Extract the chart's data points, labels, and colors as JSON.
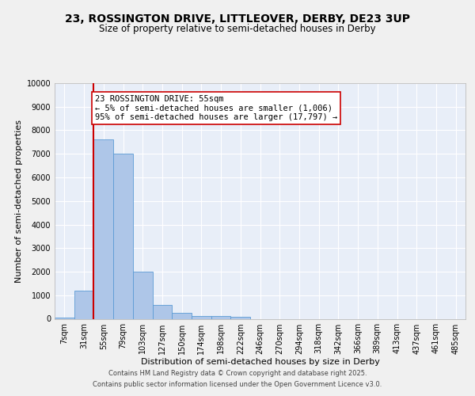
{
  "title_line1": "23, ROSSINGTON DRIVE, LITTLEOVER, DERBY, DE23 3UP",
  "title_line2": "Size of property relative to semi-detached houses in Derby",
  "xlabel": "Distribution of semi-detached houses by size in Derby",
  "ylabel": "Number of semi-detached properties",
  "categories": [
    "7sqm",
    "31sqm",
    "55sqm",
    "79sqm",
    "103sqm",
    "127sqm",
    "150sqm",
    "174sqm",
    "198sqm",
    "222sqm",
    "246sqm",
    "270sqm",
    "294sqm",
    "318sqm",
    "342sqm",
    "366sqm",
    "389sqm",
    "413sqm",
    "437sqm",
    "461sqm",
    "485sqm"
  ],
  "values": [
    50,
    1200,
    7600,
    7000,
    2000,
    600,
    250,
    130,
    120,
    100,
    0,
    0,
    0,
    0,
    0,
    0,
    0,
    0,
    0,
    0,
    0
  ],
  "bar_color": "#aec6e8",
  "bar_edge_color": "#5b9bd5",
  "red_line_index": 2,
  "annotation_text": "23 ROSSINGTON DRIVE: 55sqm\n← 5% of semi-detached houses are smaller (1,006)\n95% of semi-detached houses are larger (17,797) →",
  "annotation_box_color": "#ffffff",
  "annotation_box_edge_color": "#cc0000",
  "ylim": [
    0,
    10000
  ],
  "yticks": [
    0,
    1000,
    2000,
    3000,
    4000,
    5000,
    6000,
    7000,
    8000,
    9000,
    10000
  ],
  "background_color": "#e8eef8",
  "grid_color": "#ffffff",
  "fig_background_color": "#f0f0f0",
  "footer_line1": "Contains HM Land Registry data © Crown copyright and database right 2025.",
  "footer_line2": "Contains public sector information licensed under the Open Government Licence v3.0.",
  "title_fontsize": 10,
  "subtitle_fontsize": 8.5,
  "axis_label_fontsize": 8,
  "tick_fontsize": 7,
  "annotation_fontsize": 7.5,
  "footer_fontsize": 6
}
